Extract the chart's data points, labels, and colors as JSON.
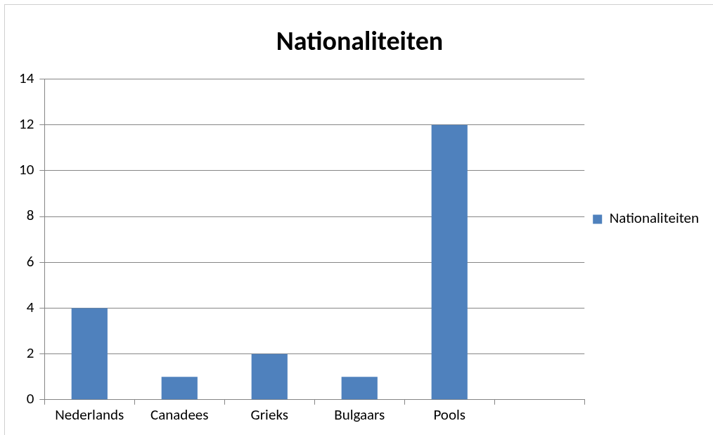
{
  "chart_data": {
    "type": "bar",
    "title": "Nationaliteiten",
    "categories": [
      "Nederlands",
      "Canadees",
      "Grieks",
      "Bulgaars",
      "Pools",
      null
    ],
    "series": [
      {
        "name": "Nationaliteiten",
        "color": "#4f81bd",
        "values": [
          4,
          1,
          2,
          1,
          12,
          null
        ]
      }
    ],
    "ylim": [
      0,
      14
    ],
    "yticks": [
      0,
      2,
      4,
      6,
      8,
      10,
      12,
      14
    ],
    "grid": "y",
    "legend": "right"
  }
}
